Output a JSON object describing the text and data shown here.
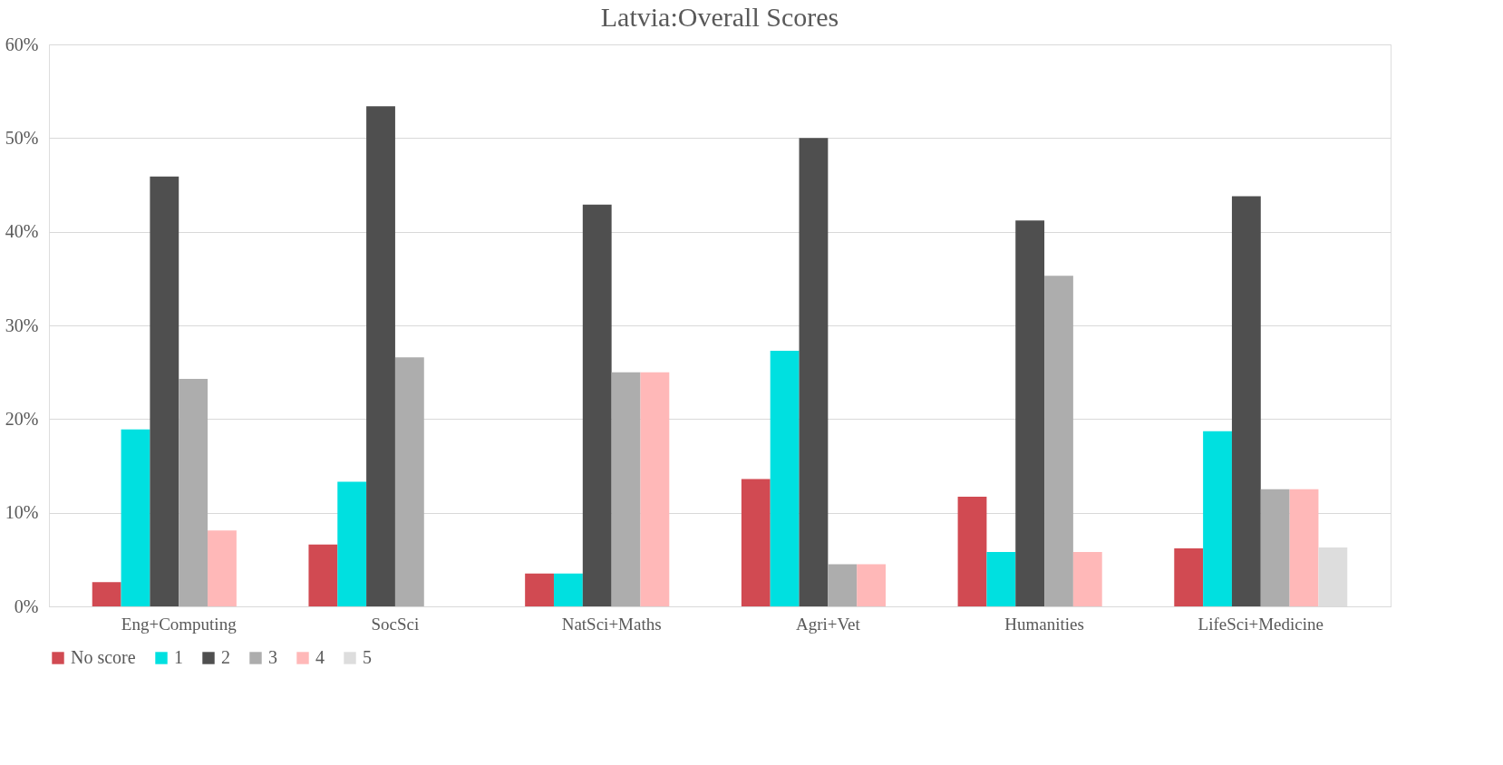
{
  "chart_data": {
    "type": "bar",
    "title": "Latvia:Overall Scores",
    "categories": [
      "Eng+Computing",
      "SocSci",
      "NatSci+Maths",
      "Agri+Vet",
      "Humanities",
      "LifeSci+Medicine"
    ],
    "series": [
      {
        "name": "No score",
        "color": "#d14a52",
        "values": [
          2.6,
          6.6,
          3.5,
          13.6,
          11.7,
          6.2
        ]
      },
      {
        "name": "1",
        "color": "#00e0e0",
        "values": [
          18.9,
          13.3,
          3.5,
          27.3,
          5.8,
          18.7
        ]
      },
      {
        "name": "2",
        "color": "#4f4f4f",
        "values": [
          45.9,
          53.4,
          42.9,
          50.0,
          41.2,
          43.8
        ]
      },
      {
        "name": "3",
        "color": "#adadad",
        "values": [
          24.3,
          26.6,
          25.0,
          4.5,
          35.3,
          12.5
        ]
      },
      {
        "name": "4",
        "color": "#ffb8b8",
        "values": [
          8.1,
          null,
          25.0,
          4.5,
          5.8,
          12.5
        ]
      },
      {
        "name": "5",
        "color": "#dddddd",
        "values": [
          null,
          null,
          null,
          null,
          null,
          6.3
        ]
      }
    ],
    "ylim": [
      0,
      60
    ],
    "yticks": [
      {
        "value": 0,
        "label": "0%"
      },
      {
        "value": 10,
        "label": "10%"
      },
      {
        "value": 20,
        "label": "20%"
      },
      {
        "value": 30,
        "label": "30%"
      },
      {
        "value": 40,
        "label": "40%"
      },
      {
        "value": 50,
        "label": "50%"
      },
      {
        "value": 60,
        "label": "60%"
      }
    ],
    "grid": "y",
    "legend": "bottom"
  }
}
